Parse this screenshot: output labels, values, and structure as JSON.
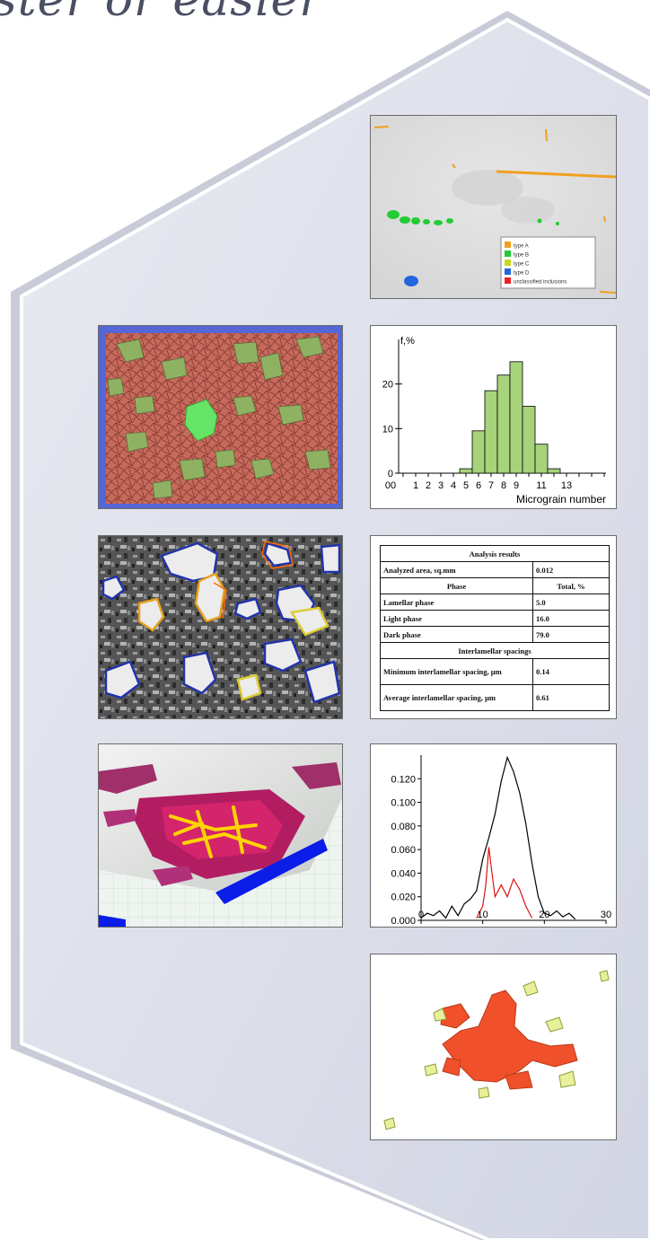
{
  "page": {
    "title": "ster or easier"
  },
  "inclusions": {
    "legend": [
      {
        "label": "type A",
        "color": "#f0a020"
      },
      {
        "label": "type B",
        "color": "#22cc33"
      },
      {
        "label": "type C",
        "color": "#c8d820"
      },
      {
        "label": "type D",
        "color": "#2266dd"
      },
      {
        "label": "unclassified inclusions",
        "color": "#ee2222"
      }
    ]
  },
  "histogram": {
    "ylabel": "f,%",
    "xlabel": "Micrograin number",
    "yticks": [
      "0",
      "10",
      "20"
    ],
    "xticks": [
      "00",
      "1",
      "2",
      "3",
      "4",
      "5",
      "6",
      "7",
      "8",
      "9",
      "11",
      "13"
    ]
  },
  "results": {
    "title": "Analysis results",
    "analyzed_label": "Analyzed area, sq.mm",
    "analyzed_value": "0.012",
    "phase_header": "Phase",
    "total_header": "Total, %",
    "rows": [
      {
        "label": "Lamellar phase",
        "value": "5.0"
      },
      {
        "label": "Light phase",
        "value": "16.0"
      },
      {
        "label": "Dark phase",
        "value": "79.0"
      }
    ],
    "spacing_header": "Interlamellar spacings",
    "spacing_rows": [
      {
        "label": "Minimum interlamellar spacing, µm",
        "value": "0.14"
      },
      {
        "label": "Average interlamellar spacing, µm",
        "value": "0.61"
      }
    ]
  },
  "chart_data": [
    {
      "type": "bar",
      "xlabel": "Micrograin number",
      "ylabel": "f,%",
      "categories": [
        "4",
        "5",
        "6",
        "7",
        "8",
        "9",
        "10",
        "11"
      ],
      "values": [
        1,
        9.5,
        18.5,
        22,
        25,
        15,
        6.5,
        1
      ],
      "ylim": [
        0,
        30
      ],
      "color": "#a7d37a"
    },
    {
      "type": "line",
      "xlim": [
        0,
        30
      ],
      "ylim": [
        0,
        0.14
      ],
      "yticks": [
        "0.000",
        "0.020",
        "0.040",
        "0.060",
        "0.080",
        "0.100",
        "0.120"
      ],
      "xticks": [
        "0",
        "10",
        "20",
        "30"
      ],
      "series": [
        {
          "color": "#000000",
          "x": [
            0,
            1,
            2,
            3,
            4,
            5,
            6,
            7,
            8,
            9,
            10,
            11,
            12,
            13,
            14,
            15,
            16,
            17,
            18,
            19,
            20,
            21,
            22,
            23,
            24,
            25
          ],
          "y": [
            0.002,
            0.006,
            0.004,
            0.008,
            0.002,
            0.012,
            0.004,
            0.014,
            0.018,
            0.025,
            0.052,
            0.07,
            0.09,
            0.118,
            0.138,
            0.126,
            0.108,
            0.082,
            0.048,
            0.02,
            0.006,
            0.004,
            0.008,
            0.003,
            0.006,
            0.001
          ]
        },
        {
          "color": "#dd1111",
          "x": [
            9,
            10,
            10.5,
            11,
            11.5,
            12,
            13,
            14,
            15,
            16,
            17,
            18
          ],
          "y": [
            0.002,
            0.012,
            0.03,
            0.062,
            0.04,
            0.02,
            0.03,
            0.02,
            0.035,
            0.026,
            0.012,
            0.002
          ]
        }
      ]
    }
  ]
}
